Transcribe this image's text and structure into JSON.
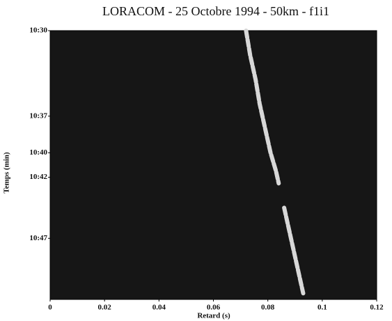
{
  "chart_data": {
    "type": "line",
    "title": "LORACOM - 25 Octobre 1994 - 50km - f1i1",
    "xlabel": "Retard (s)",
    "ylabel": "Temps (min)",
    "x": [
      0.072,
      0.0735,
      0.0755,
      0.077,
      0.079,
      0.081,
      0.083,
      0.084,
      null,
      0.086,
      0.0875,
      0.089,
      0.091,
      0.093
    ],
    "values": [
      630,
      632,
      634,
      636,
      638,
      640,
      641.5,
      642.5,
      null,
      644.5,
      646,
      647.5,
      649.5,
      651.5
    ],
    "color": "#d8d8d8",
    "background": "#161616",
    "xlim": [
      0,
      0.12
    ],
    "xticks": [
      0,
      0.02,
      0.04,
      0.06,
      0.08,
      0.1,
      0.12
    ],
    "ylim": [
      630,
      652
    ],
    "y_inverted": true,
    "yticks": [
      {
        "value": 630,
        "label": "10:30"
      },
      {
        "value": 637,
        "label": "10:37"
      },
      {
        "value": 640,
        "label": "10:40"
      },
      {
        "value": 642,
        "label": "10:42"
      },
      {
        "value": 647,
        "label": "10:47"
      }
    ]
  }
}
